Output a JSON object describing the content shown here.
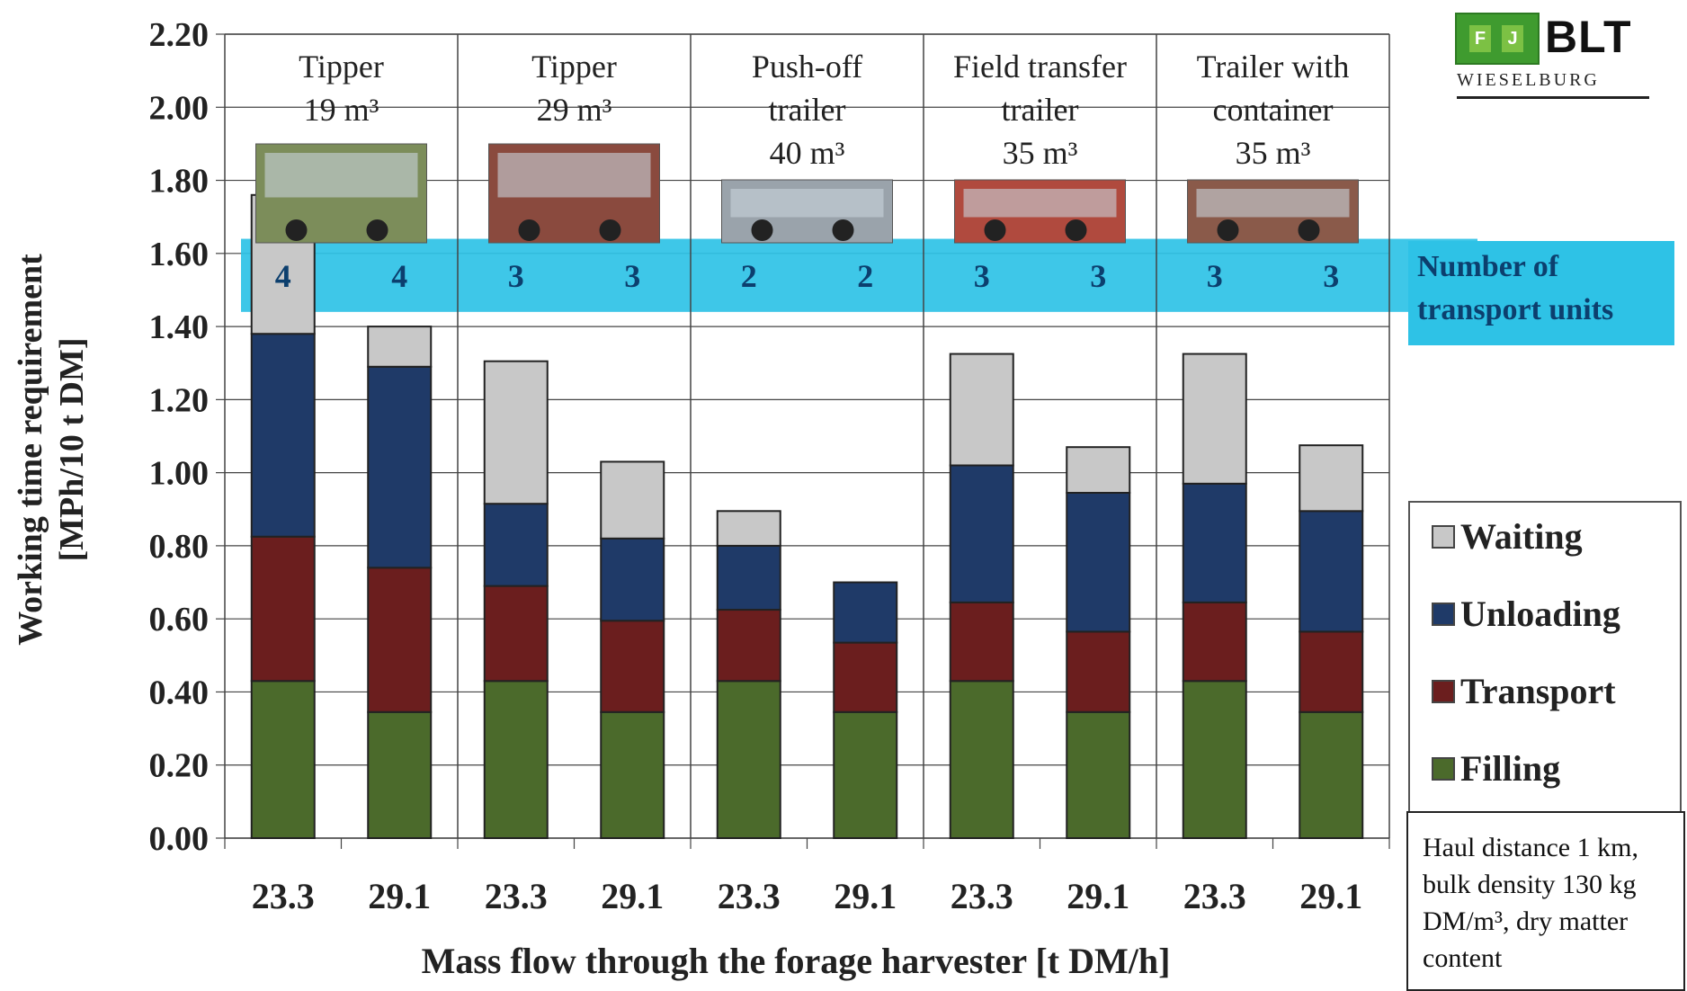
{
  "logo": {
    "letters": [
      "F",
      "J"
    ],
    "brand": "BLT",
    "subtitle": "WIESELBURG"
  },
  "band": {
    "line1": "Number of",
    "line2": "transport units"
  },
  "legend": [
    {
      "label": "Waiting",
      "color": "#c8c8c8"
    },
    {
      "label": "Unloading",
      "color": "#1f3a68"
    },
    {
      "label": "Transport",
      "color": "#6b1e1e"
    },
    {
      "label": "Filling",
      "color": "#4b6a2b"
    }
  ],
  "note": "Haul distance 1 km, bulk density 130 kg DM/m³, dry matter content",
  "chart_data": {
    "type": "bar",
    "stacked": true,
    "xlabel": "Mass flow through the forage harvester [t DM/h]",
    "ylabel_line1": "Working time requirement",
    "ylabel_line2": "[MPh/10 t DM]",
    "ylim": [
      0,
      2.2
    ],
    "yticks": [
      "0.00",
      "0.20",
      "0.40",
      "0.60",
      "0.80",
      "1.00",
      "1.20",
      "1.40",
      "1.60",
      "1.80",
      "2.00",
      "2.20"
    ],
    "categories": [
      "23.3",
      "29.1",
      "23.3",
      "29.1",
      "23.3",
      "29.1",
      "23.3",
      "29.1",
      "23.3",
      "29.1"
    ],
    "groups": [
      {
        "lines": [
          "Tipper",
          "19 m³"
        ]
      },
      {
        "lines": [
          "Tipper",
          "29 m³"
        ]
      },
      {
        "lines": [
          "Push-off",
          "trailer",
          "40 m³"
        ]
      },
      {
        "lines": [
          "Field transfer",
          "trailer",
          "35 m³"
        ]
      },
      {
        "lines": [
          "Trailer with",
          "container",
          "35 m³"
        ]
      }
    ],
    "transport_units": [
      "4",
      "4",
      "3",
      "3",
      "2",
      "2",
      "3",
      "3",
      "3",
      "3"
    ],
    "series": [
      {
        "name": "Filling",
        "color": "#4b6a2b",
        "values": [
          0.43,
          0.345,
          0.43,
          0.345,
          0.43,
          0.345,
          0.43,
          0.345,
          0.43,
          0.345
        ]
      },
      {
        "name": "Transport",
        "color": "#6b1e1e",
        "values": [
          0.395,
          0.395,
          0.26,
          0.25,
          0.195,
          0.19,
          0.215,
          0.22,
          0.215,
          0.22
        ]
      },
      {
        "name": "Unloading",
        "color": "#1f3a68",
        "values": [
          0.555,
          0.55,
          0.225,
          0.225,
          0.175,
          0.165,
          0.375,
          0.38,
          0.325,
          0.33
        ]
      },
      {
        "name": "Waiting",
        "color": "#c8c8c8",
        "values": [
          0.38,
          0.11,
          0.39,
          0.21,
          0.095,
          0.0,
          0.305,
          0.125,
          0.355,
          0.18
        ]
      }
    ]
  }
}
